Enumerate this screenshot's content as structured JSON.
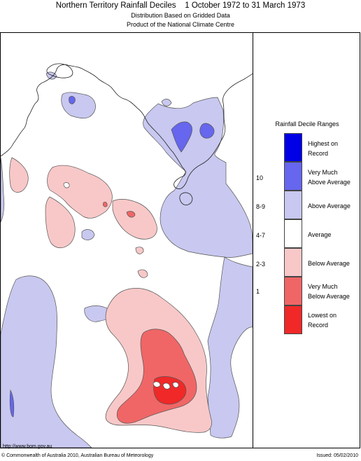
{
  "title": "Northern Territory Rainfall Deciles    1 October 1972 to 31 March 1973",
  "subtitle_line1": "Distribution Based on Gridded Data",
  "subtitle_line2": "Product of the National Climate Centre",
  "legend": {
    "title": "Rainfall Decile Ranges",
    "items": [
      {
        "label_line1": "Highest on",
        "label_line2": "Record",
        "range": "",
        "color": "#0000e6"
      },
      {
        "label_line1": "Very Much",
        "label_line2": "Above Average",
        "range": "10",
        "color": "#6666ee"
      },
      {
        "label_line1": "Above Average",
        "label_line2": "",
        "range": "8-9",
        "color": "#c8c8f0"
      },
      {
        "label_line1": "Average",
        "label_line2": "",
        "range": "4-7",
        "color": "#ffffff"
      },
      {
        "label_line1": "Below Average",
        "label_line2": "",
        "range": "2-3",
        "color": "#f8c8c8"
      },
      {
        "label_line1": "Very Much",
        "label_line2": "Below Average",
        "range": "1",
        "color": "#f06666"
      },
      {
        "label_line1": "Lowest on",
        "label_line2": "Record",
        "range": "",
        "color": "#f02828"
      }
    ]
  },
  "footer": {
    "url": "http://www.bom.gov.au",
    "copyright": "© Commonwealth of Australia 2010, Australian Bureau of Meteorology",
    "issued": "Issued: 05/02/2010"
  }
}
